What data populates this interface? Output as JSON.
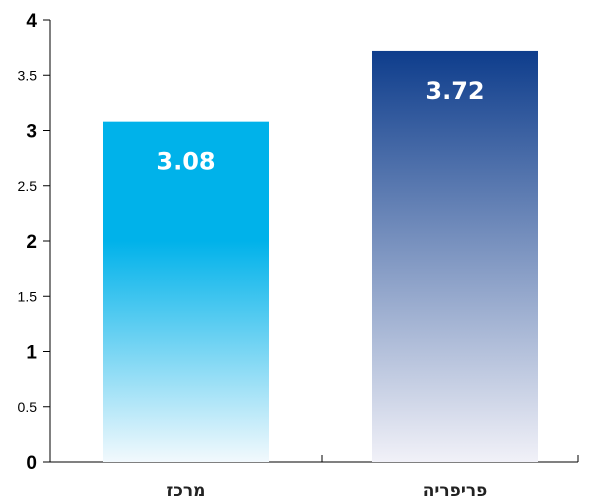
{
  "chart_data": {
    "type": "bar",
    "categories": [
      "מרכז",
      "פריפריה"
    ],
    "values": [
      3.08,
      3.72
    ],
    "value_labels": [
      "3.08",
      "3.72"
    ],
    "ylim": [
      0,
      4
    ],
    "y_ticks": [
      "0",
      "0.5",
      "1",
      "1.5",
      "2",
      "2.5",
      "3",
      "3.5",
      "4"
    ],
    "grid": false,
    "legend": "none",
    "colors": {
      "series_1_top": "#00b2ea",
      "series_1_bottom": "#f2f9fd",
      "series_2_top": "#0e3d8c",
      "series_2_bottom": "#f1f1f8"
    }
  }
}
